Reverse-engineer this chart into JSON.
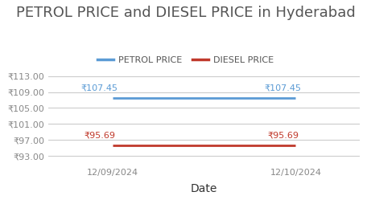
{
  "title": "PETROL PRICE and DIESEL PRICE in Hyderabad",
  "xlabel": "Date",
  "dates": [
    "12/09/2024",
    "12/10/2024"
  ],
  "petrol_values": [
    107.45,
    107.45
  ],
  "diesel_values": [
    95.69,
    95.69
  ],
  "petrol_color": "#5B9BD5",
  "diesel_color": "#C0392B",
  "ylim": [
    91.0,
    115.0
  ],
  "yticks": [
    93.0,
    97.0,
    101.0,
    105.0,
    109.0,
    113.0
  ],
  "legend_petrol": "PETROL PRICE",
  "legend_diesel": "DIESEL PRICE",
  "title_fontsize": 13,
  "label_fontsize": 9,
  "tick_fontsize": 8,
  "annotation_fontsize": 8,
  "legend_fontsize": 8,
  "background_color": "#ffffff",
  "grid_color": "#cccccc",
  "text_color": "#888888",
  "xlabel_color": "#333333"
}
